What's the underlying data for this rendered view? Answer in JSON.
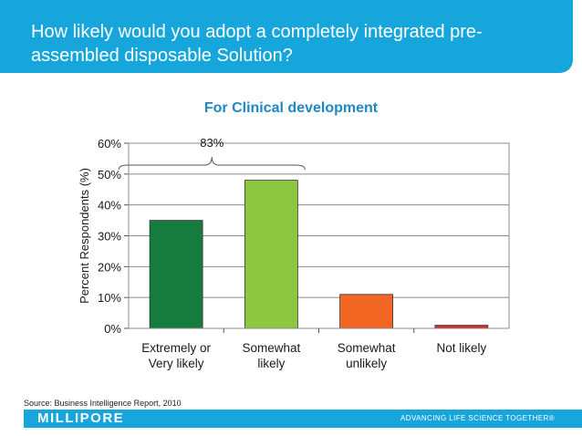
{
  "header": {
    "title": "How likely would you adopt a completely integrated pre-assembled disposable Solution?"
  },
  "chart_data": {
    "type": "bar",
    "title": "For Clinical development",
    "ylabel": "Percent Respondents (%)",
    "xlabel": "",
    "ylim": [
      0,
      60
    ],
    "yticks": [
      "0%",
      "10%",
      "20%",
      "30%",
      "40%",
      "50%",
      "60%"
    ],
    "categories": [
      [
        "Extremely or",
        "Very likely"
      ],
      [
        "Somewhat",
        "likely"
      ],
      [
        "Somewhat",
        "unlikely"
      ],
      [
        "Not likely"
      ]
    ],
    "values": [
      35,
      48,
      11,
      1
    ],
    "colors": [
      "#167c3e",
      "#8dc63f",
      "#f26522",
      "#d7282f"
    ],
    "annotation": {
      "text": "83%",
      "spans": [
        0,
        1
      ]
    },
    "grid": true
  },
  "footer": {
    "source": "Source: Business Intelligence Report, 2010",
    "logo": "MILLIPORE",
    "tagline": "ADVANCING LIFE SCIENCE TOGETHER®"
  }
}
